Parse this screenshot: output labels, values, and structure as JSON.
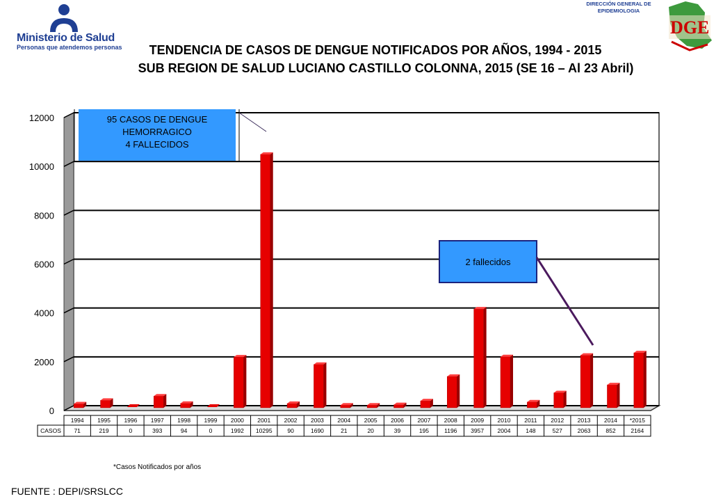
{
  "header": {
    "ministry_name": "Ministerio de Salud",
    "ministry_tagline": "Personas que atendemos personas",
    "dge_line1": "DIRECCIÓN GENERAL DE",
    "dge_line2": "EPIDEMIOLOGIA",
    "dge_logo_letters": "DGE",
    "title_line1": "TENDENCIA DE CASOS DE DENGUE NOTIFICADOS POR AÑOS, 1994 - 2015",
    "title_line2": "SUB REGION DE SALUD LUCIANO CASTILLO COLONNA, 2015 (SE 16 – Al 23 Abril)"
  },
  "chart_data": {
    "type": "bar",
    "categories": [
      "1994",
      "1995",
      "1996",
      "1997",
      "1998",
      "1999",
      "2000",
      "2001",
      "2002",
      "2003",
      "2004",
      "2005",
      "2006",
      "2007",
      "2008",
      "2009",
      "2010",
      "2011",
      "2012",
      "2013",
      "2014",
      "*2015"
    ],
    "series": [
      {
        "name": "CASOS",
        "values": [
          71,
          219,
          0,
          393,
          94,
          0,
          1992,
          10295,
          90,
          1690,
          21,
          20,
          39,
          195,
          1196,
          3957,
          2004,
          148,
          527,
          2063,
          852,
          2164
        ],
        "color": "#e60000"
      }
    ],
    "table_row_label": "CASOS",
    "table_values": [
      "71",
      "219",
      "0",
      "393",
      "94",
      "0",
      "1992",
      "10295",
      "90",
      "1690",
      "21",
      "20",
      "39",
      "195",
      "1196",
      "3957",
      "2004",
      "148",
      "527",
      "2063",
      "852",
      "2164"
    ],
    "yticks": [
      "0",
      "2000",
      "4000",
      "6000",
      "8000",
      "10000",
      "12000"
    ],
    "ylim": [
      0,
      12000
    ],
    "grid": true,
    "annotations": [
      {
        "lines": [
          "95 CASOS DE DENGUE",
          "HEMORRAGICO",
          "4 FALLECIDOS"
        ],
        "target": "2001",
        "bg": "#3399ff"
      },
      {
        "lines": [
          "2 fallecidos"
        ],
        "target": "2013",
        "bg": "#3399ff"
      }
    ]
  },
  "footnote": "*Casos Notificados por años",
  "source": "FUENTE : DEPI/SRSLCC"
}
